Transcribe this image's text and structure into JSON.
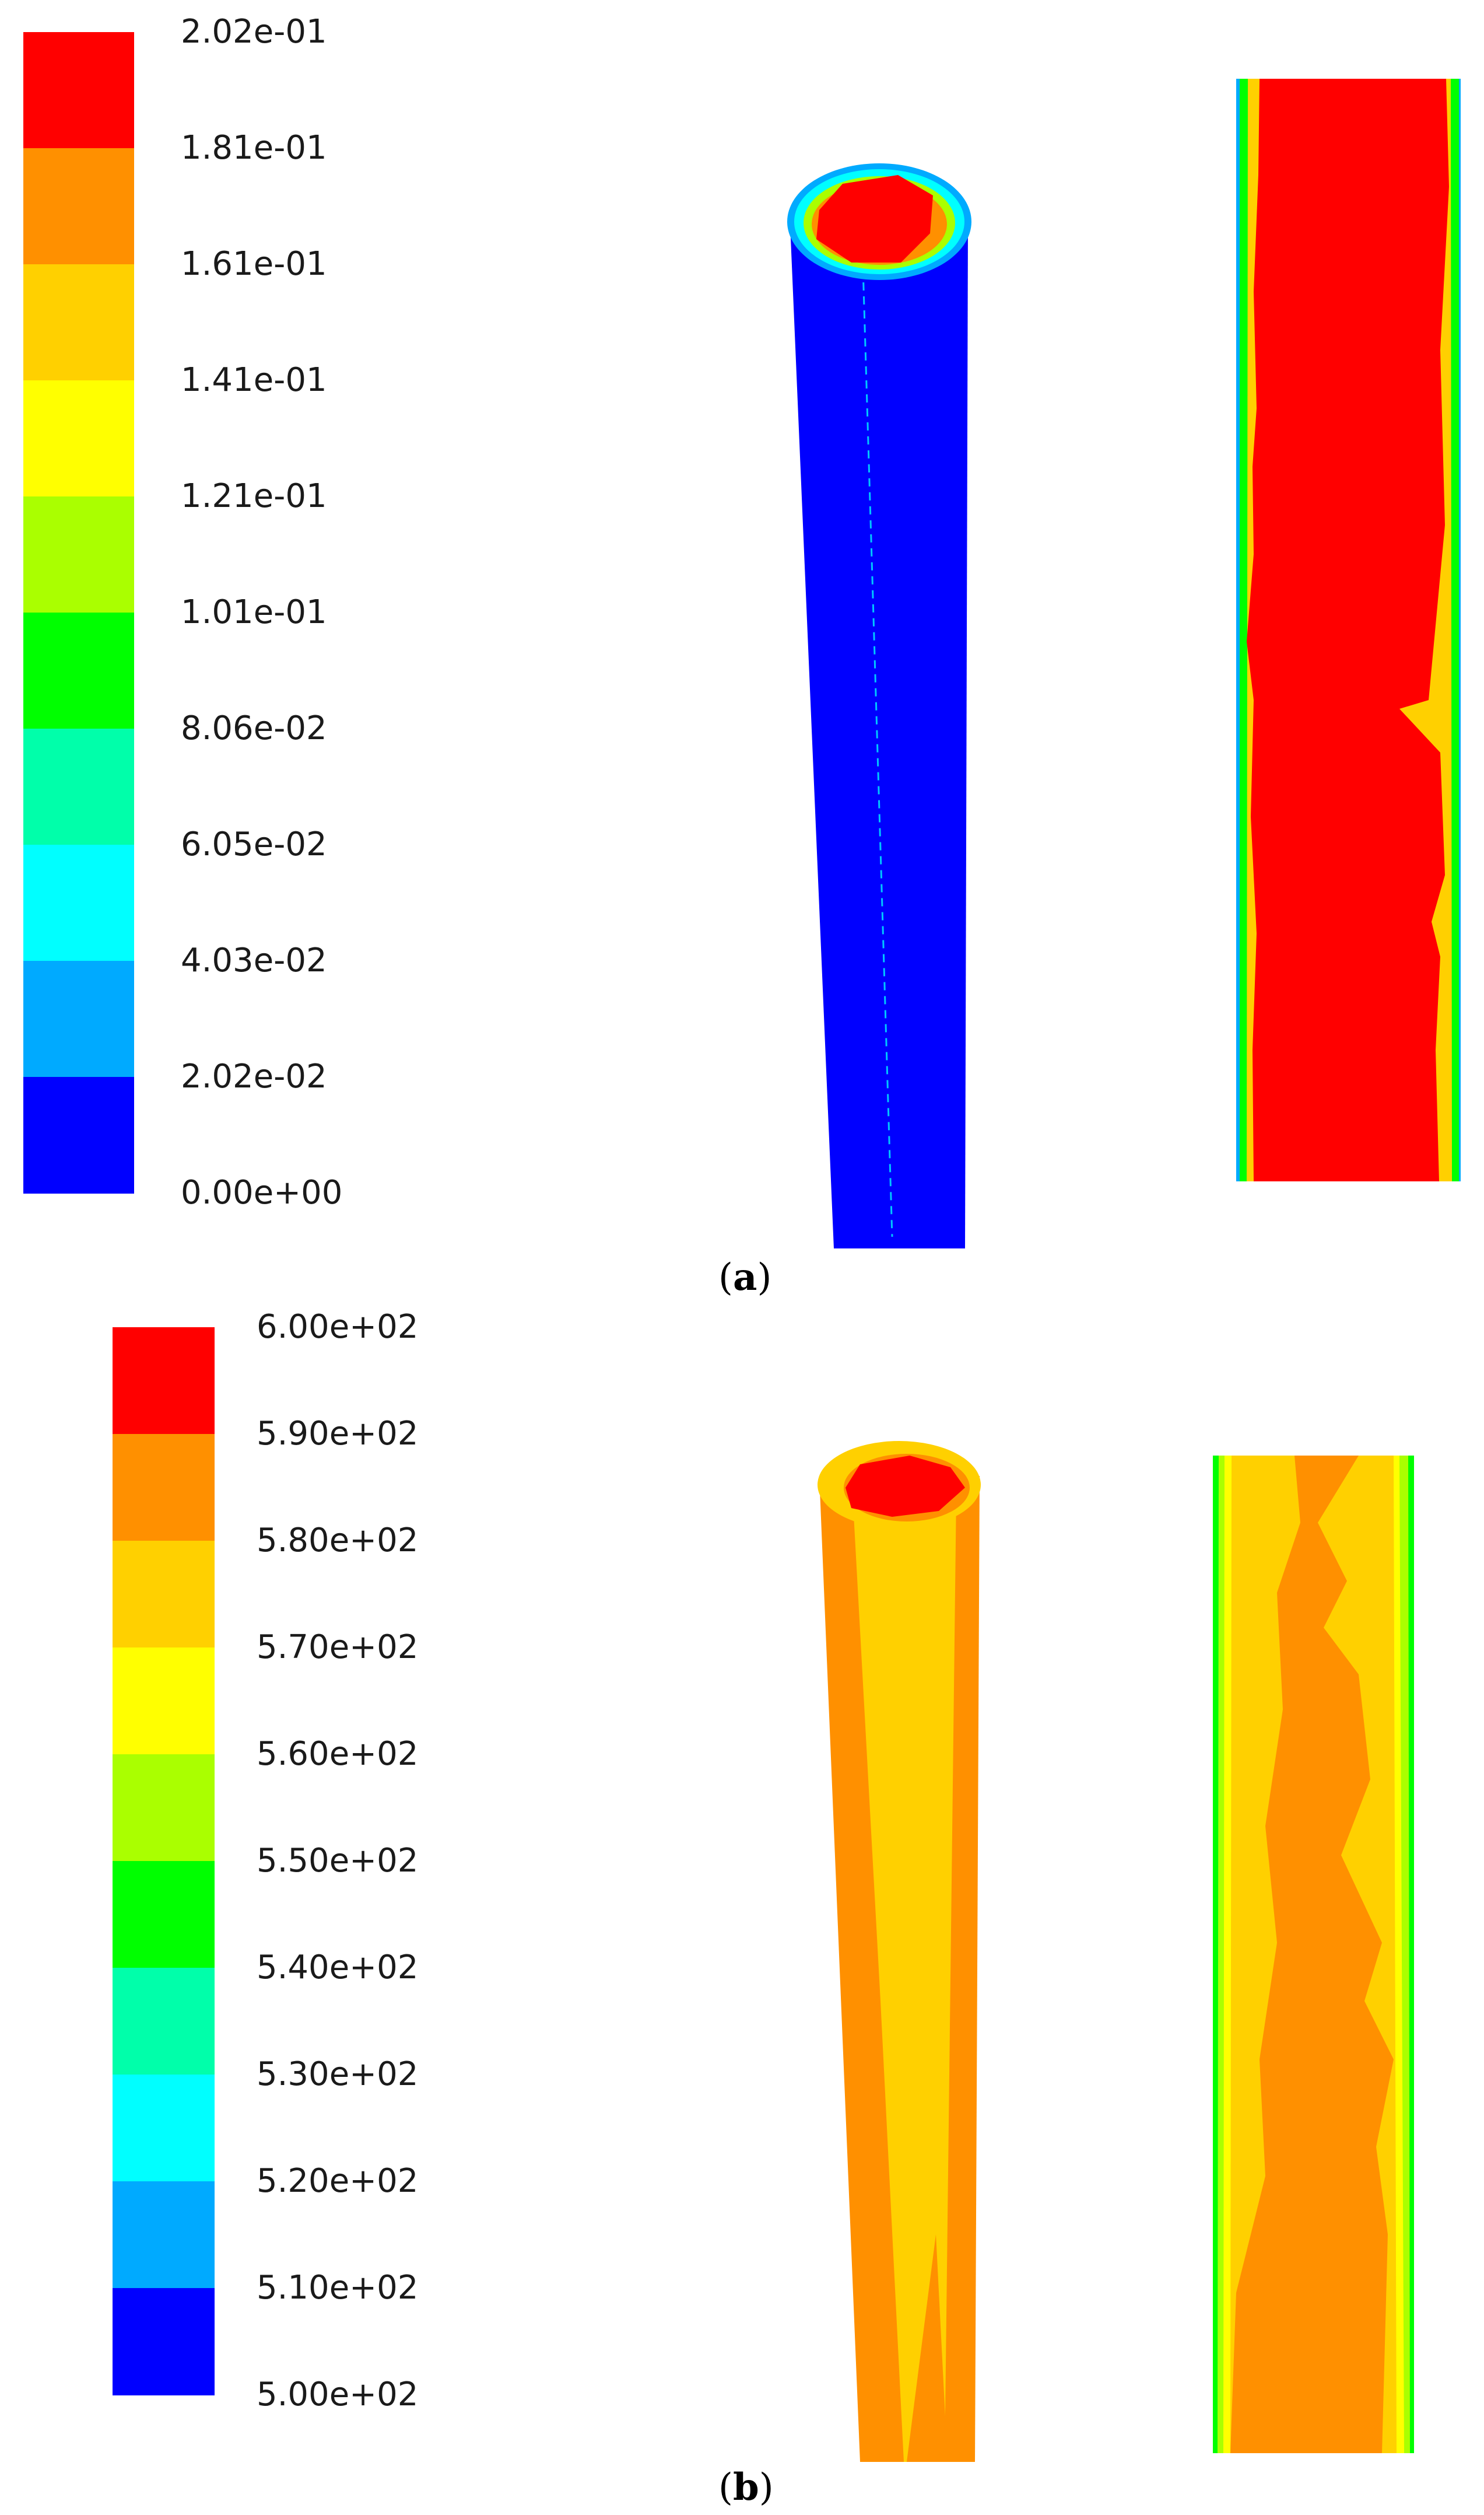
{
  "figure": {
    "panels": [
      {
        "id": "a",
        "caption_letter": "a",
        "colors": [
          "#0000ff",
          "#00aaff",
          "#00ffff",
          "#00ffaa",
          "#00ff00",
          "#aaff00",
          "#ffff00",
          "#ffd000",
          "#ff9000",
          "#ff0000"
        ],
        "legend_labels": [
          "2.02e-01",
          "1.81e-01",
          "1.61e-01",
          "1.41e-01",
          "1.21e-01",
          "1.01e-01",
          "8.06e-02",
          "6.05e-02",
          "4.03e-02",
          "2.02e-02",
          "0.00e+00"
        ],
        "scale_min": 0.0,
        "scale_max": 0.202
      },
      {
        "id": "b",
        "caption_letter": "b",
        "colors": [
          "#0000ff",
          "#00aaff",
          "#00ffff",
          "#00ffaa",
          "#00ff00",
          "#aaff00",
          "#ffff00",
          "#ffd000",
          "#ff9000",
          "#ff0000"
        ],
        "legend_labels": [
          "6.00e+02",
          "5.90e+02",
          "5.80e+02",
          "5.70e+02",
          "5.60e+02",
          "5.50e+02",
          "5.40e+02",
          "5.30e+02",
          "5.20e+02",
          "5.10e+02",
          "5.00e+02"
        ],
        "scale_min": 500,
        "scale_max": 600
      }
    ]
  }
}
